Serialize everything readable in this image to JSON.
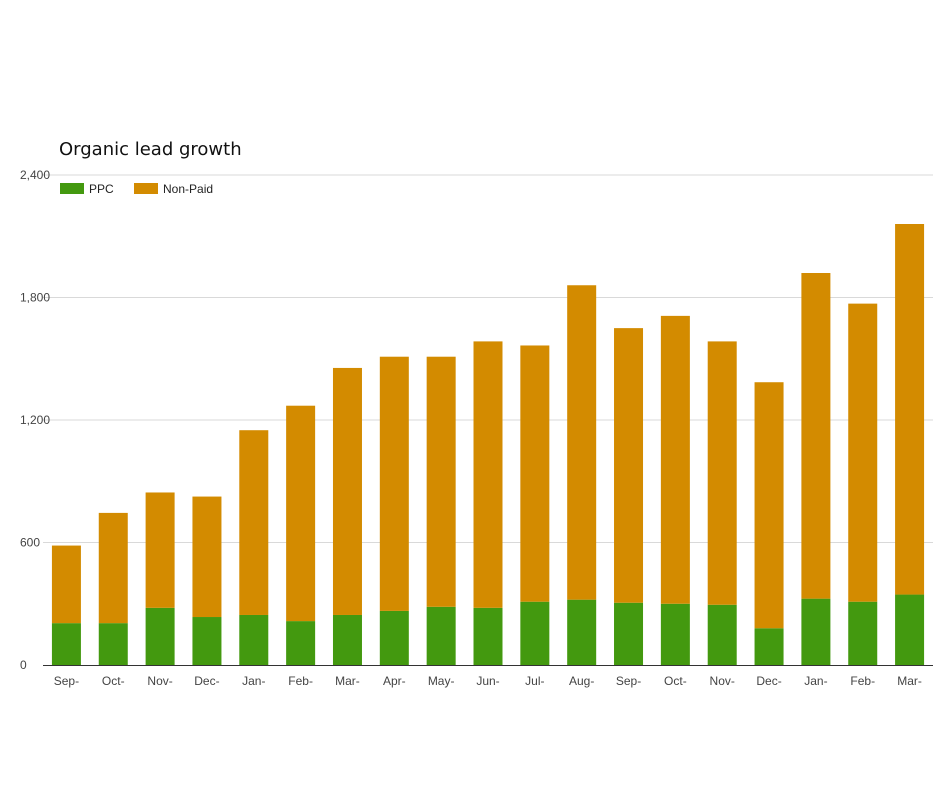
{
  "chart_data": {
    "type": "bar",
    "stacked": true,
    "title": "Organic lead growth",
    "xlabel": "",
    "ylabel": "",
    "ylim": [
      0,
      2400
    ],
    "yticks": [
      0,
      600,
      1200,
      1800,
      2400
    ],
    "ytick_labels": [
      "0",
      "600",
      "1,200",
      "1,800",
      "2,400"
    ],
    "grid": true,
    "legend_position": "top-left",
    "categories": [
      "Sep-",
      "Oct-",
      "Nov-",
      "Dec-",
      "Jan-",
      "Feb-",
      "Mar-",
      "Apr-",
      "May-",
      "Jun-",
      "Jul-",
      "Aug-",
      "Sep-",
      "Oct-",
      "Nov-",
      "Dec-",
      "Jan-",
      "Feb-",
      "Mar-"
    ],
    "series": [
      {
        "name": "PPC",
        "color": "#43990f",
        "values": [
          205,
          205,
          280,
          235,
          245,
          215,
          245,
          265,
          285,
          280,
          310,
          320,
          305,
          300,
          295,
          180,
          325,
          310,
          345
        ]
      },
      {
        "name": "Non-Paid",
        "color": "#d38b00",
        "values": [
          380,
          540,
          565,
          590,
          905,
          1055,
          1210,
          1245,
          1225,
          1305,
          1255,
          1540,
          1345,
          1410,
          1290,
          1205,
          1595,
          1460,
          1815
        ]
      }
    ]
  }
}
